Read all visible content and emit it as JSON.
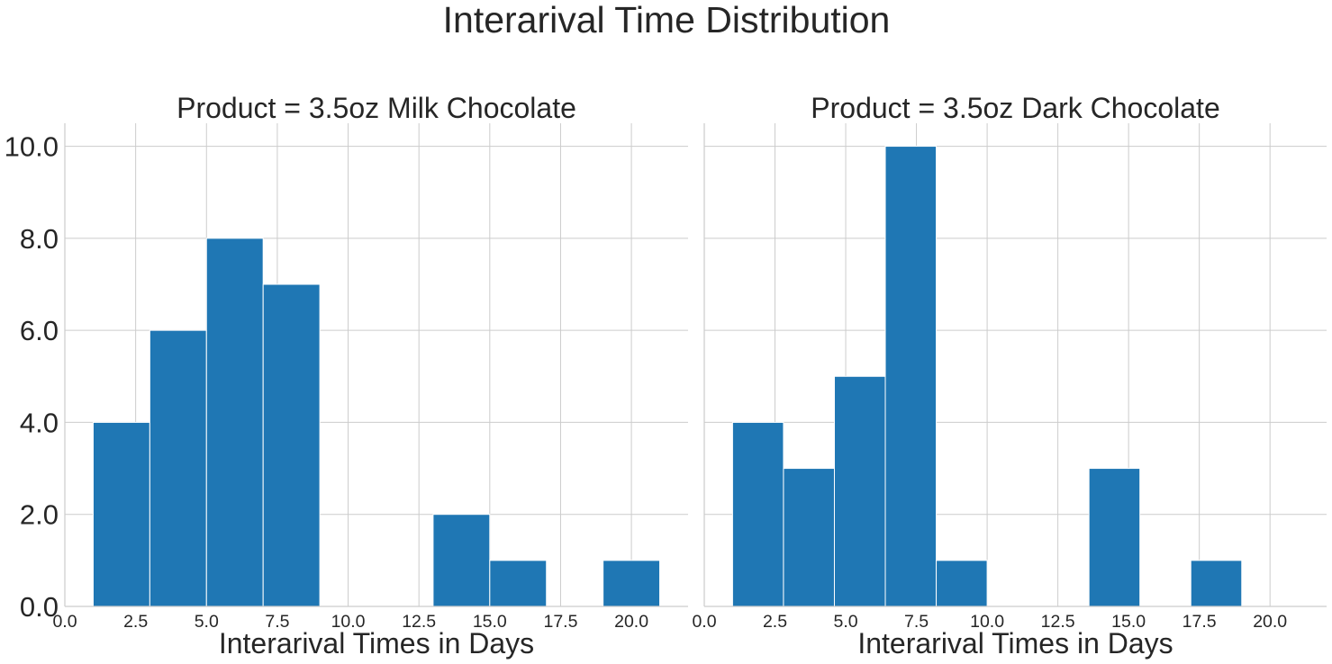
{
  "figure": {
    "title": "Interarival Time Distribution"
  },
  "chart_data": [
    {
      "type": "bar",
      "title": "Product = 3.5oz Milk Chocolate",
      "xlabel": "Interarival Times in Days",
      "ylabel": "",
      "xlim": [
        0,
        22
      ],
      "ylim": [
        0,
        10.5
      ],
      "xticks": [
        "0.0",
        "2.5",
        "5.0",
        "7.5",
        "10.0",
        "12.5",
        "15.0",
        "17.5",
        "20.0"
      ],
      "yticks": [
        "0.0",
        "2.0",
        "4.0",
        "6.0",
        "8.0",
        "10.0"
      ],
      "grid": true,
      "color": "#1f77b4",
      "bins": [
        {
          "x0": 1,
          "x1": 3,
          "count": 4
        },
        {
          "x0": 3,
          "x1": 5,
          "count": 6
        },
        {
          "x0": 5,
          "x1": 7,
          "count": 8
        },
        {
          "x0": 7,
          "x1": 9,
          "count": 7
        },
        {
          "x0": 9,
          "x1": 11,
          "count": 0
        },
        {
          "x0": 11,
          "x1": 13,
          "count": 0
        },
        {
          "x0": 13,
          "x1": 15,
          "count": 2
        },
        {
          "x0": 15,
          "x1": 17,
          "count": 1
        },
        {
          "x0": 17,
          "x1": 19,
          "count": 0
        },
        {
          "x0": 19,
          "x1": 21,
          "count": 1
        }
      ]
    },
    {
      "type": "bar",
      "title": "Product = 3.5oz Dark Chocolate",
      "xlabel": "Interarival Times in Days",
      "ylabel": "",
      "xlim": [
        0,
        22
      ],
      "ylim": [
        0,
        10.5
      ],
      "xticks": [
        "0.0",
        "2.5",
        "5.0",
        "7.5",
        "10.0",
        "12.5",
        "15.0",
        "17.5",
        "20.0"
      ],
      "yticks": [],
      "grid": true,
      "color": "#1f77b4",
      "bins": [
        {
          "x0": 1.0,
          "x1": 2.8,
          "count": 4
        },
        {
          "x0": 2.8,
          "x1": 4.6,
          "count": 3
        },
        {
          "x0": 4.6,
          "x1": 6.4,
          "count": 5
        },
        {
          "x0": 6.4,
          "x1": 8.2,
          "count": 10
        },
        {
          "x0": 8.2,
          "x1": 10.0,
          "count": 1
        },
        {
          "x0": 10.0,
          "x1": 11.8,
          "count": 0
        },
        {
          "x0": 11.8,
          "x1": 13.6,
          "count": 0
        },
        {
          "x0": 13.6,
          "x1": 15.4,
          "count": 3
        },
        {
          "x0": 15.4,
          "x1": 17.2,
          "count": 0
        },
        {
          "x0": 17.2,
          "x1": 19.0,
          "count": 1
        }
      ]
    }
  ]
}
